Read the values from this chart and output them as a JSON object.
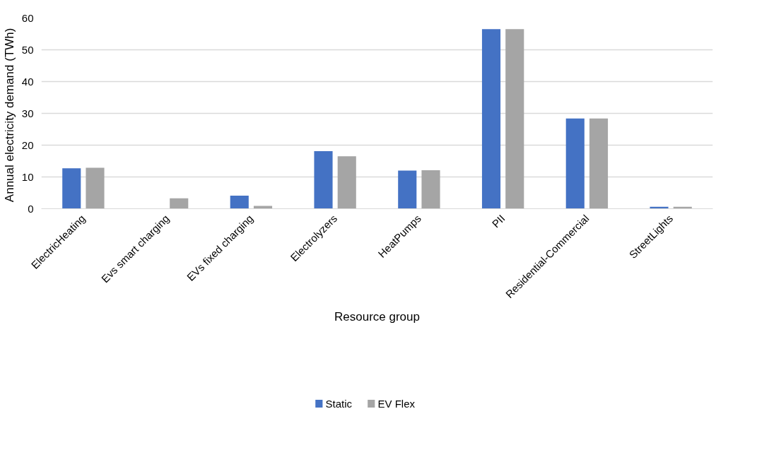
{
  "chart_data": {
    "type": "bar",
    "xlabel": "Resource group",
    "ylabel": "Annual electricity  demand (TWh)",
    "categories": [
      "ElectricHeating",
      "Evs smart charging",
      "EVs fixed charging",
      "Electrolyzers",
      "HeatPumps",
      "PII",
      "Residential-Commercial",
      "StreetLights"
    ],
    "series": [
      {
        "name": "Static",
        "color": "#4472c4",
        "values": [
          12.7,
          0,
          4.1,
          18.1,
          12.0,
          56.5,
          28.4,
          0.6
        ]
      },
      {
        "name": "EV Flex",
        "color": "#a5a5a5",
        "values": [
          12.9,
          3.3,
          0.9,
          16.5,
          12.1,
          56.5,
          28.4,
          0.6
        ]
      }
    ],
    "ylim": [
      0,
      60
    ],
    "yticks": [
      0,
      10,
      20,
      30,
      40,
      50,
      60
    ],
    "grid": "y",
    "legend": "bottom"
  }
}
